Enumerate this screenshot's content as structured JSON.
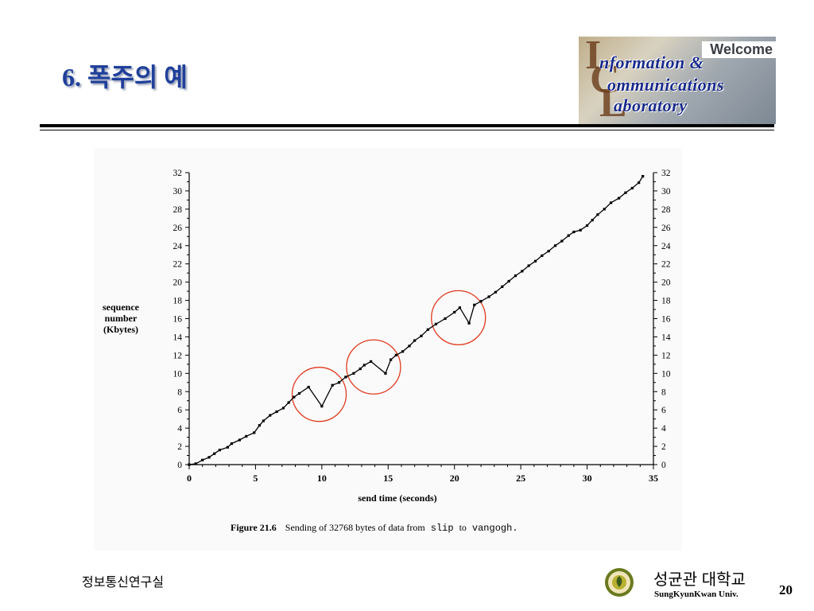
{
  "slide": {
    "title": "6. 폭주의 예",
    "footer_left": "정보통신연구실",
    "university_kr": "성균관 대학교",
    "university_en": "SungKyunKwan Univ.",
    "page_number": "20"
  },
  "banner": {
    "welcome": "Welcome",
    "line1": "nformation &",
    "line2": "ommunications",
    "line3": "aboratory",
    "big_i": "I",
    "big_c": "C",
    "big_l": "L"
  },
  "figure": {
    "caption_label": "Figure 21.6",
    "caption_text": "Sending of 32768 bytes of data from",
    "caption_from": "slip",
    "caption_to_word": "to",
    "caption_to": "vangogh."
  },
  "chart_data": {
    "type": "line",
    "xlabel": "send time (seconds)",
    "ylabel": [
      "sequence",
      "number",
      "(Kbytes)"
    ],
    "xlim": [
      0,
      35
    ],
    "ylim": [
      0,
      32
    ],
    "x_ticks": [
      0,
      5,
      10,
      15,
      20,
      25,
      30,
      35
    ],
    "y_ticks": [
      0,
      2,
      4,
      6,
      8,
      10,
      12,
      14,
      16,
      18,
      20,
      22,
      24,
      26,
      28,
      30,
      32
    ],
    "grid": false,
    "legend": "none",
    "series": [
      {
        "x": [
          0,
          0.5,
          1.0,
          1.5,
          1.9,
          2.3,
          2.9,
          3.2,
          3.8,
          4.3,
          4.9,
          5.3,
          5.6,
          6.1,
          6.6,
          7.1,
          7.5,
          7.9,
          8.3,
          9.0,
          10.0,
          10.8,
          11.3,
          11.8,
          12.4,
          12.9,
          13.2,
          13.7,
          14.8,
          15.2,
          15.6,
          16.1,
          16.6,
          17.0,
          17.5,
          18.0,
          18.6,
          19.3,
          20.0,
          20.4,
          21.1,
          21.5,
          22.0,
          22.6,
          23.1,
          23.6,
          24.1,
          24.6,
          25.1,
          25.6,
          26.1,
          26.6,
          27.1,
          27.6,
          28.1,
          28.6,
          29.0,
          29.5,
          30.0,
          30.4,
          30.8,
          31.3,
          31.8,
          32.4,
          32.9,
          33.4,
          33.9,
          34.2
        ],
        "y": [
          0,
          0.1,
          0.5,
          0.8,
          1.2,
          1.6,
          1.9,
          2.3,
          2.7,
          3.1,
          3.5,
          4.3,
          4.8,
          5.4,
          5.8,
          6.2,
          6.8,
          7.4,
          7.8,
          8.5,
          6.4,
          8.7,
          9.0,
          9.6,
          10.0,
          10.5,
          10.9,
          11.3,
          10.0,
          11.5,
          12.0,
          12.4,
          13.0,
          13.6,
          14.1,
          14.8,
          15.4,
          16.0,
          16.7,
          17.2,
          15.5,
          17.5,
          17.9,
          18.4,
          18.9,
          19.5,
          20.1,
          20.7,
          21.2,
          21.8,
          22.3,
          22.9,
          23.4,
          24.0,
          24.5,
          25.1,
          25.5,
          25.7,
          26.2,
          26.8,
          27.4,
          28.0,
          28.7,
          29.2,
          29.8,
          30.3,
          30.9,
          31.6
        ]
      }
    ],
    "annotations": [
      {
        "shape": "circle",
        "x": 9.8,
        "y": 7.7
      },
      {
        "shape": "circle",
        "x": 13.9,
        "y": 10.7
      },
      {
        "shape": "circle",
        "x": 20.3,
        "y": 16.1
      }
    ],
    "colors": {
      "line": "#000000",
      "annotation": "#e03a1e"
    }
  }
}
